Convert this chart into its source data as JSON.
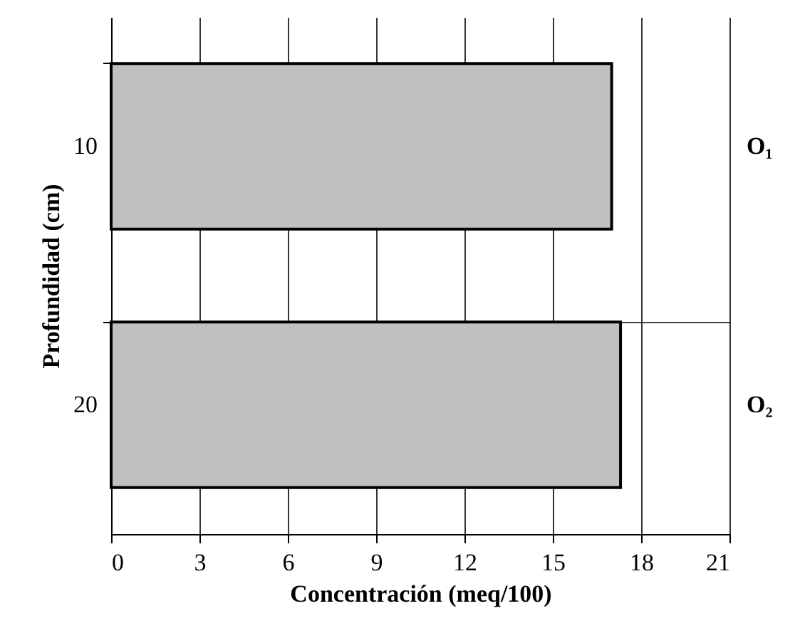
{
  "chart_data": {
    "type": "bar",
    "orientation": "horizontal",
    "xlabel": "Concentración (meq/100)",
    "ylabel": "Profundidad (cm)",
    "categories": [
      "10",
      "20"
    ],
    "values": [
      17.0,
      17.3
    ],
    "color": "#c0c0c0",
    "xlim": [
      0,
      21
    ],
    "xticks": [
      0,
      3,
      6,
      9,
      12,
      15,
      18,
      21
    ],
    "grid": true,
    "annotations": [
      "O₁",
      "O₂"
    ]
  }
}
